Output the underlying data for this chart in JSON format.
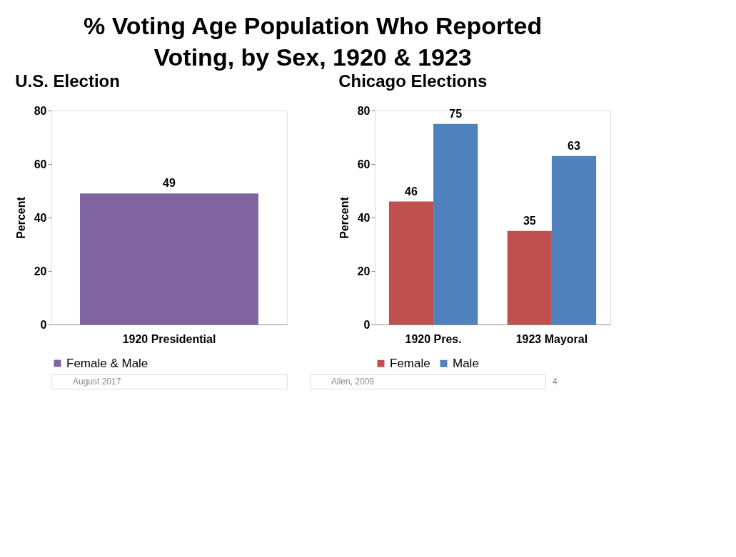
{
  "chart_data": [
    {
      "type": "bar",
      "title": "% Voting Age Population Who Reported Voting, by Sex, 1920 & 1923",
      "subtitle": "U.S. Election",
      "ylabel": "Percent",
      "categories": [
        "1920 Presidential"
      ],
      "series": [
        {
          "name": "Female & Male",
          "color": "#8064a2",
          "values": [
            49
          ]
        }
      ],
      "ylim": [
        0,
        80
      ],
      "yticks": [
        0,
        20,
        40,
        60,
        80
      ],
      "grid": false,
      "legend": "bottom",
      "data_labels": true,
      "annotations": [
        "August 2017"
      ]
    },
    {
      "type": "bar",
      "subtitle": "Chicago Elections",
      "ylabel": "Percent",
      "categories": [
        "1920 Pres.",
        "1923 Mayoral"
      ],
      "series": [
        {
          "name": "Female",
          "color": "#c0504d",
          "values": [
            46,
            35
          ]
        },
        {
          "name": "Male",
          "color": "#4f81bd",
          "values": [
            75,
            63
          ]
        }
      ],
      "ylim": [
        0,
        80
      ],
      "yticks": [
        0,
        20,
        40,
        60,
        80
      ],
      "grid": false,
      "legend": "bottom",
      "data_labels": true,
      "annotations": [
        "Allen, 2009",
        "4"
      ]
    }
  ]
}
